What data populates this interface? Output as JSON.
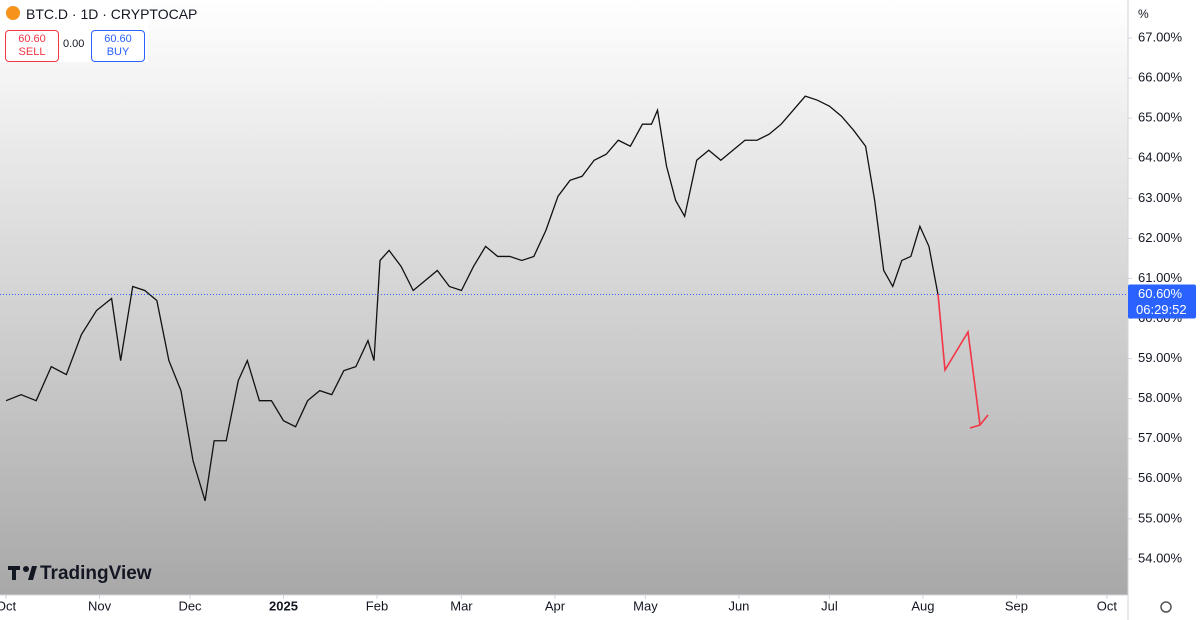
{
  "header": {
    "symbol": "BTC.D · 1D · CRYPTOCAP",
    "sell_price": "60.60",
    "sell_label": "SELL",
    "spread": "0.00",
    "buy_price": "60.60",
    "buy_label": "BUY",
    "brand": "TradingView",
    "axis_unit": "%"
  },
  "chart_data": {
    "type": "line",
    "color": "#111111",
    "x": [
      0,
      5,
      10,
      15,
      20,
      25,
      30,
      35,
      38,
      42,
      46,
      50,
      54,
      58,
      62,
      66,
      69,
      73,
      77,
      80,
      84,
      88,
      92,
      96,
      100,
      104,
      108,
      112,
      116,
      120,
      122,
      124,
      127,
      131,
      135,
      139,
      143,
      147,
      151,
      155,
      159,
      163,
      167,
      171,
      175,
      179,
      183,
      187,
      191,
      195,
      199,
      203,
      207,
      211,
      214,
      216,
      219,
      222,
      225,
      229,
      233,
      237,
      241,
      245,
      249,
      253,
      257,
      261,
      265,
      269,
      273,
      277,
      281,
      285,
      288,
      291,
      294,
      297,
      300,
      303,
      306,
      309
    ],
    "values": [
      57.95,
      58.1,
      57.95,
      58.8,
      58.6,
      59.6,
      60.2,
      60.5,
      58.95,
      60.8,
      60.7,
      60.45,
      58.95,
      58.2,
      56.45,
      55.45,
      56.95,
      56.95,
      58.45,
      58.95,
      57.95,
      57.95,
      57.45,
      57.3,
      57.95,
      58.2,
      58.1,
      58.7,
      58.8,
      59.45,
      58.95,
      61.45,
      61.7,
      61.3,
      60.7,
      60.95,
      61.2,
      60.8,
      60.7,
      61.3,
      61.8,
      61.55,
      61.55,
      61.45,
      61.55,
      62.2,
      63.05,
      63.45,
      63.55,
      63.95,
      64.1,
      64.45,
      64.3,
      64.85,
      64.85,
      65.2,
      63.8,
      62.95,
      62.55,
      63.95,
      64.2,
      63.95,
      64.2,
      64.45,
      64.45,
      64.6,
      64.85,
      65.2,
      65.55,
      65.45,
      65.3,
      65.05,
      64.7,
      64.3,
      62.95,
      61.2,
      60.8,
      61.45,
      61.55,
      62.3,
      61.8,
      60.6
    ],
    "xlim": [
      -2,
      372
    ],
    "xticks": [
      {
        "value": 0,
        "label": "Oct"
      },
      {
        "value": 31,
        "label": "Nov"
      },
      {
        "value": 61,
        "label": "Dec"
      },
      {
        "value": 92,
        "label": "2025"
      },
      {
        "value": 123,
        "label": "Feb"
      },
      {
        "value": 151,
        "label": "Mar"
      },
      {
        "value": 182,
        "label": "Apr"
      },
      {
        "value": 212,
        "label": "May"
      },
      {
        "value": 243,
        "label": "Jun"
      },
      {
        "value": 273,
        "label": "Jul"
      },
      {
        "value": 304,
        "label": "Aug"
      },
      {
        "value": 335,
        "label": "Sep"
      },
      {
        "value": 365,
        "label": "Oct"
      }
    ],
    "ylim": [
      53.1,
      67.95
    ],
    "yticks": [
      {
        "value": 54,
        "label": "54.00%"
      },
      {
        "value": 55,
        "label": "55.00%"
      },
      {
        "value": 56,
        "label": "56.00%"
      },
      {
        "value": 57,
        "label": "57.00%"
      },
      {
        "value": 58,
        "label": "58.00%"
      },
      {
        "value": 59,
        "label": "59.00%"
      },
      {
        "value": 60,
        "label": "60.00%"
      },
      {
        "value": 61,
        "label": "61.00%"
      },
      {
        "value": 62,
        "label": "62.00%"
      },
      {
        "value": 63,
        "label": "63.00%"
      },
      {
        "value": 64,
        "label": "64.00%"
      },
      {
        "value": 65,
        "label": "65.00%"
      },
      {
        "value": 66,
        "label": "66.00%"
      },
      {
        "value": 67,
        "label": "67.00%"
      }
    ],
    "last_price": {
      "value": 60.6,
      "label": "60.60%"
    },
    "countdown": "06:29:52",
    "grid": false
  }
}
